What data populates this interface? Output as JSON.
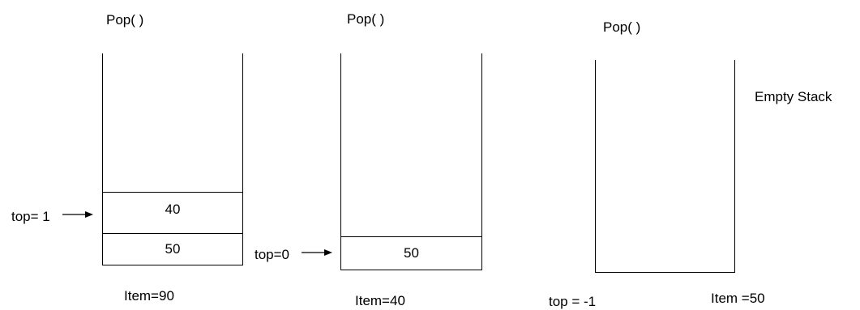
{
  "stacks": [
    {
      "operation": "Pop( )",
      "cells": [
        "40",
        "50"
      ],
      "pointer_label": "top= 1",
      "item_label": "Item=90"
    },
    {
      "operation": "Pop( )",
      "cells": [
        "50"
      ],
      "pointer_label": "top=0",
      "item_label": "Item=40"
    },
    {
      "operation": "Pop( )",
      "cells": [],
      "status_label": "Empty Stack",
      "top_label": "top = -1",
      "item_label": "Item =50"
    }
  ]
}
